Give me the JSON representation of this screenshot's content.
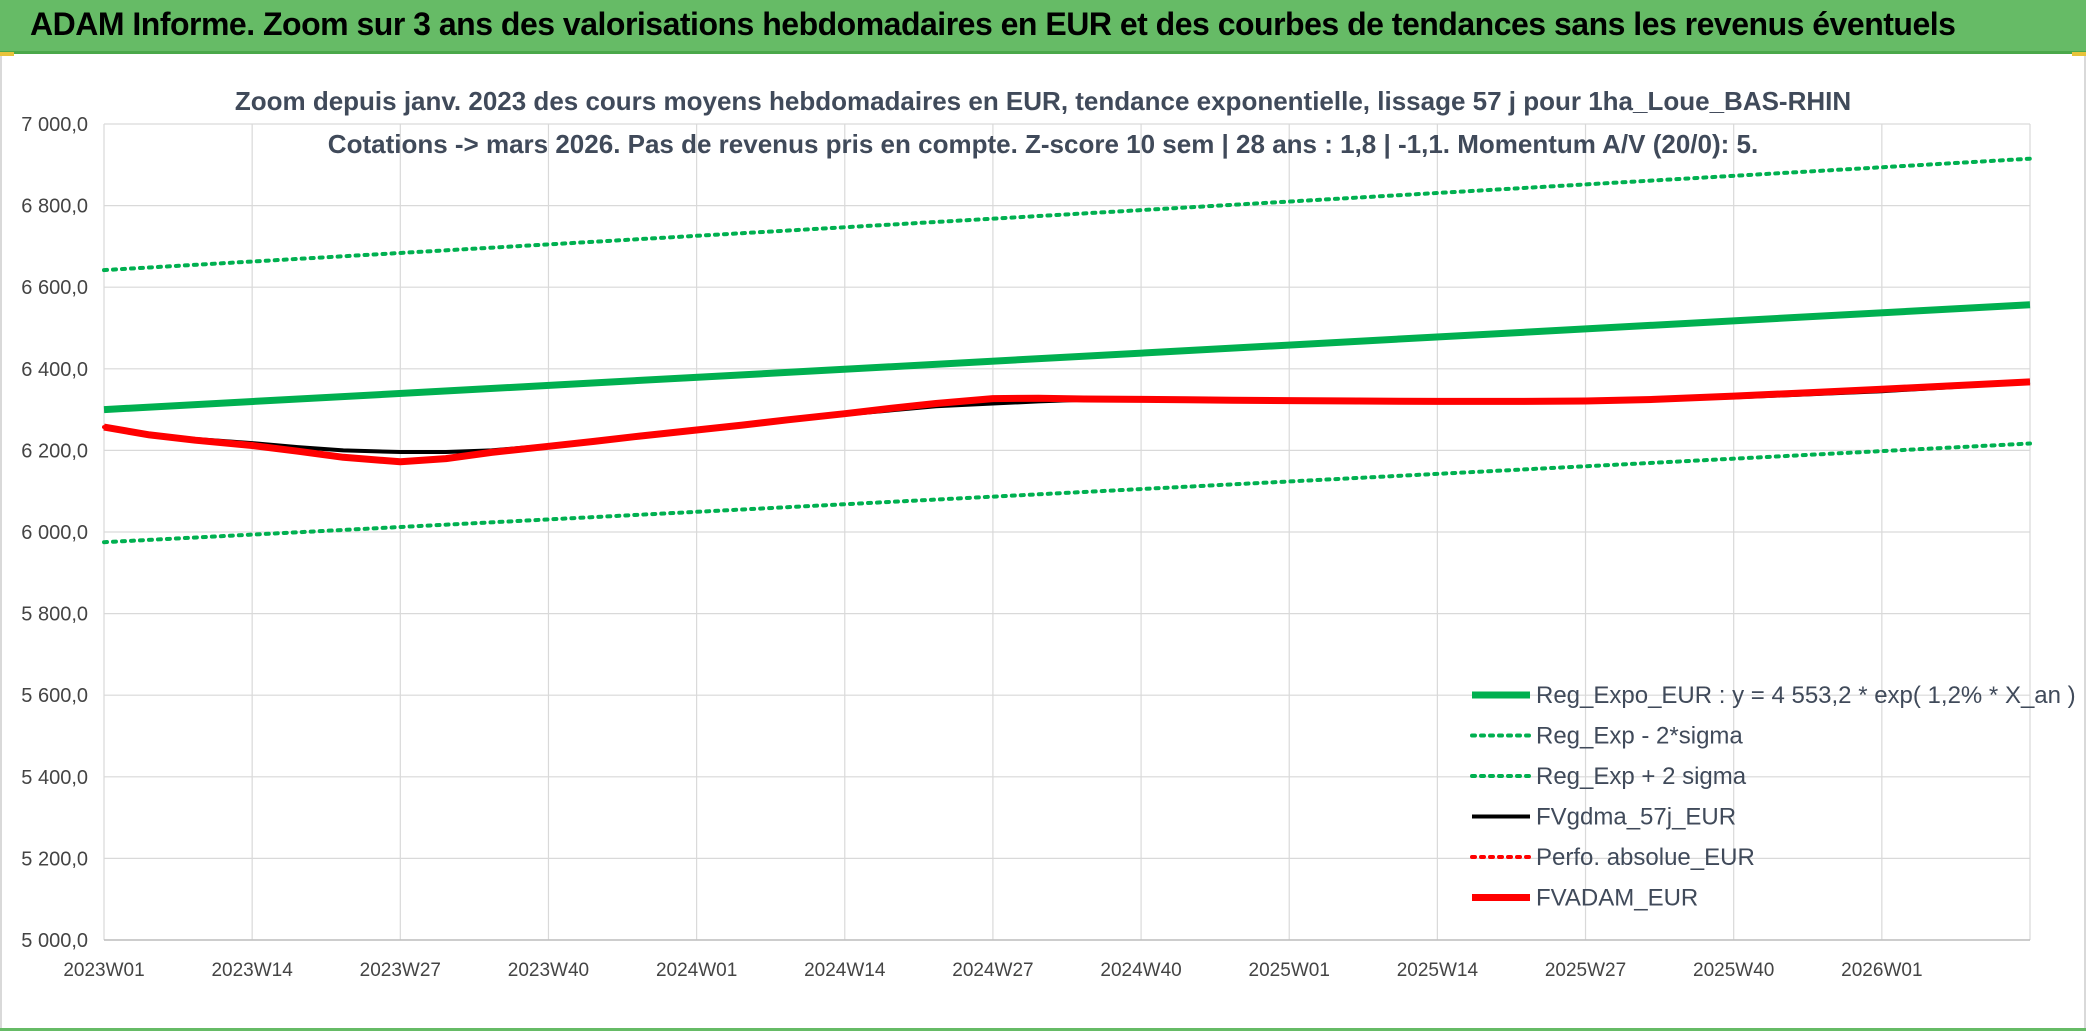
{
  "header": {
    "title": "ADAM Informe. Zoom sur 3 ans des valorisations hebdomadaires en EUR et des courbes de tendances sans les revenus éventuels"
  },
  "chart_data": {
    "type": "line",
    "title_lines": [
      "Zoom depuis janv. 2023 des cours moyens hebdomadaires en EUR, tendance exponentielle, lissage 57 j pour 1ha_Loue_BAS-RHIN",
      "Cotations -> mars 2026. Pas de revenus pris en compte. Z-score 10 sem | 28 ans : 1,8 | -1,1. Momentum A/V (20/0): 5."
    ],
    "xlabel": "",
    "ylabel": "",
    "ylim": [
      5000,
      7000
    ],
    "y_ticks": [
      "7 000,0",
      "6 800,0",
      "6 600,0",
      "6 400,0",
      "6 200,0",
      "6 000,0",
      "5 800,0",
      "5 600,0",
      "5 400,0",
      "5 200,0",
      "5 000,0"
    ],
    "y_tick_values": [
      7000,
      6800,
      6600,
      6400,
      6200,
      6000,
      5800,
      5600,
      5400,
      5200,
      5000
    ],
    "x_ticks": [
      "2023W01",
      "2023W14",
      "2023W27",
      "2023W40",
      "2024W01",
      "2024W14",
      "2024W27",
      "2024W40",
      "2025W01",
      "2025W14",
      "2025W27",
      "2025W40",
      "2026W01"
    ],
    "grid": true,
    "legend_position": "bottom-right",
    "colors": {
      "trend": "#00b050",
      "band": "#00b050",
      "smooth": "#000000",
      "perfo": "#ff0000",
      "fvadam": "#ff0000",
      "grid": "#d9d9d9"
    },
    "series": [
      {
        "name": "Reg_Expo_EUR : y = 4 553,2 * exp( 1,2% *  X_an )",
        "style": "solid-thick",
        "color": "#00b050",
        "x_week_index": [
          0,
          169
        ],
        "values": [
          6300,
          6557
        ]
      },
      {
        "name": "Reg_Exp - 2*sigma",
        "style": "dotted",
        "color": "#00b050",
        "x_week_index": [
          0,
          169
        ],
        "values": [
          5975,
          6217
        ]
      },
      {
        "name": "Reg_Exp + 2 sigma",
        "style": "dotted",
        "color": "#00b050",
        "x_week_index": [
          0,
          169
        ],
        "values": [
          6642,
          6915
        ]
      },
      {
        "name": "FVgdma_57j_EUR",
        "style": "solid",
        "color": "#000000",
        "x_week_index": [
          0,
          4,
          8,
          13,
          17,
          21,
          26,
          30,
          34,
          39,
          43,
          47,
          52,
          56,
          60,
          65,
          69,
          73,
          78,
          82,
          86,
          91,
          95,
          99,
          104,
          110,
          117,
          124,
          130,
          136,
          143,
          150,
          156,
          162,
          169
        ],
        "values": [
          6255,
          6240,
          6228,
          6218,
          6208,
          6200,
          6196,
          6196,
          6200,
          6212,
          6222,
          6233,
          6248,
          6260,
          6273,
          6288,
          6298,
          6308,
          6315,
          6320,
          6324,
          6326,
          6326,
          6325,
          6324,
          6323,
          6322,
          6322,
          6323,
          6325,
          6330,
          6338,
          6345,
          6355,
          6368
        ]
      },
      {
        "name": "Perfo. absolue_EUR",
        "style": "dotted",
        "color": "#ff0000",
        "x_week_index": [
          0,
          4,
          8,
          13,
          17,
          21,
          26,
          30,
          34,
          39,
          43,
          47,
          52,
          56,
          60,
          65,
          69,
          73,
          78,
          82,
          86,
          91,
          95,
          99,
          104,
          110,
          117,
          124,
          130,
          136,
          143,
          150,
          156,
          162,
          169
        ],
        "values": [
          6257,
          6238,
          6225,
          6212,
          6198,
          6183,
          6172,
          6180,
          6195,
          6210,
          6222,
          6235,
          6250,
          6262,
          6275,
          6290,
          6303,
          6315,
          6327,
          6328,
          6326,
          6325,
          6324,
          6323,
          6322,
          6321,
          6320,
          6320,
          6321,
          6325,
          6333,
          6342,
          6350,
          6358,
          6368
        ]
      },
      {
        "name": "FVADAM_EUR",
        "style": "solid-thick",
        "color": "#ff0000",
        "x_week_index": [
          0,
          4,
          8,
          13,
          17,
          21,
          26,
          30,
          34,
          39,
          43,
          47,
          52,
          56,
          60,
          65,
          69,
          73,
          78,
          82,
          86,
          91,
          95,
          99,
          104,
          110,
          117,
          124,
          130,
          136,
          143,
          150,
          156,
          162,
          169
        ],
        "values": [
          6257,
          6238,
          6225,
          6212,
          6198,
          6183,
          6172,
          6180,
          6195,
          6210,
          6222,
          6235,
          6250,
          6262,
          6275,
          6290,
          6303,
          6315,
          6327,
          6328,
          6326,
          6325,
          6324,
          6323,
          6322,
          6321,
          6320,
          6320,
          6321,
          6325,
          6333,
          6342,
          6350,
          6358,
          6368
        ]
      }
    ]
  }
}
